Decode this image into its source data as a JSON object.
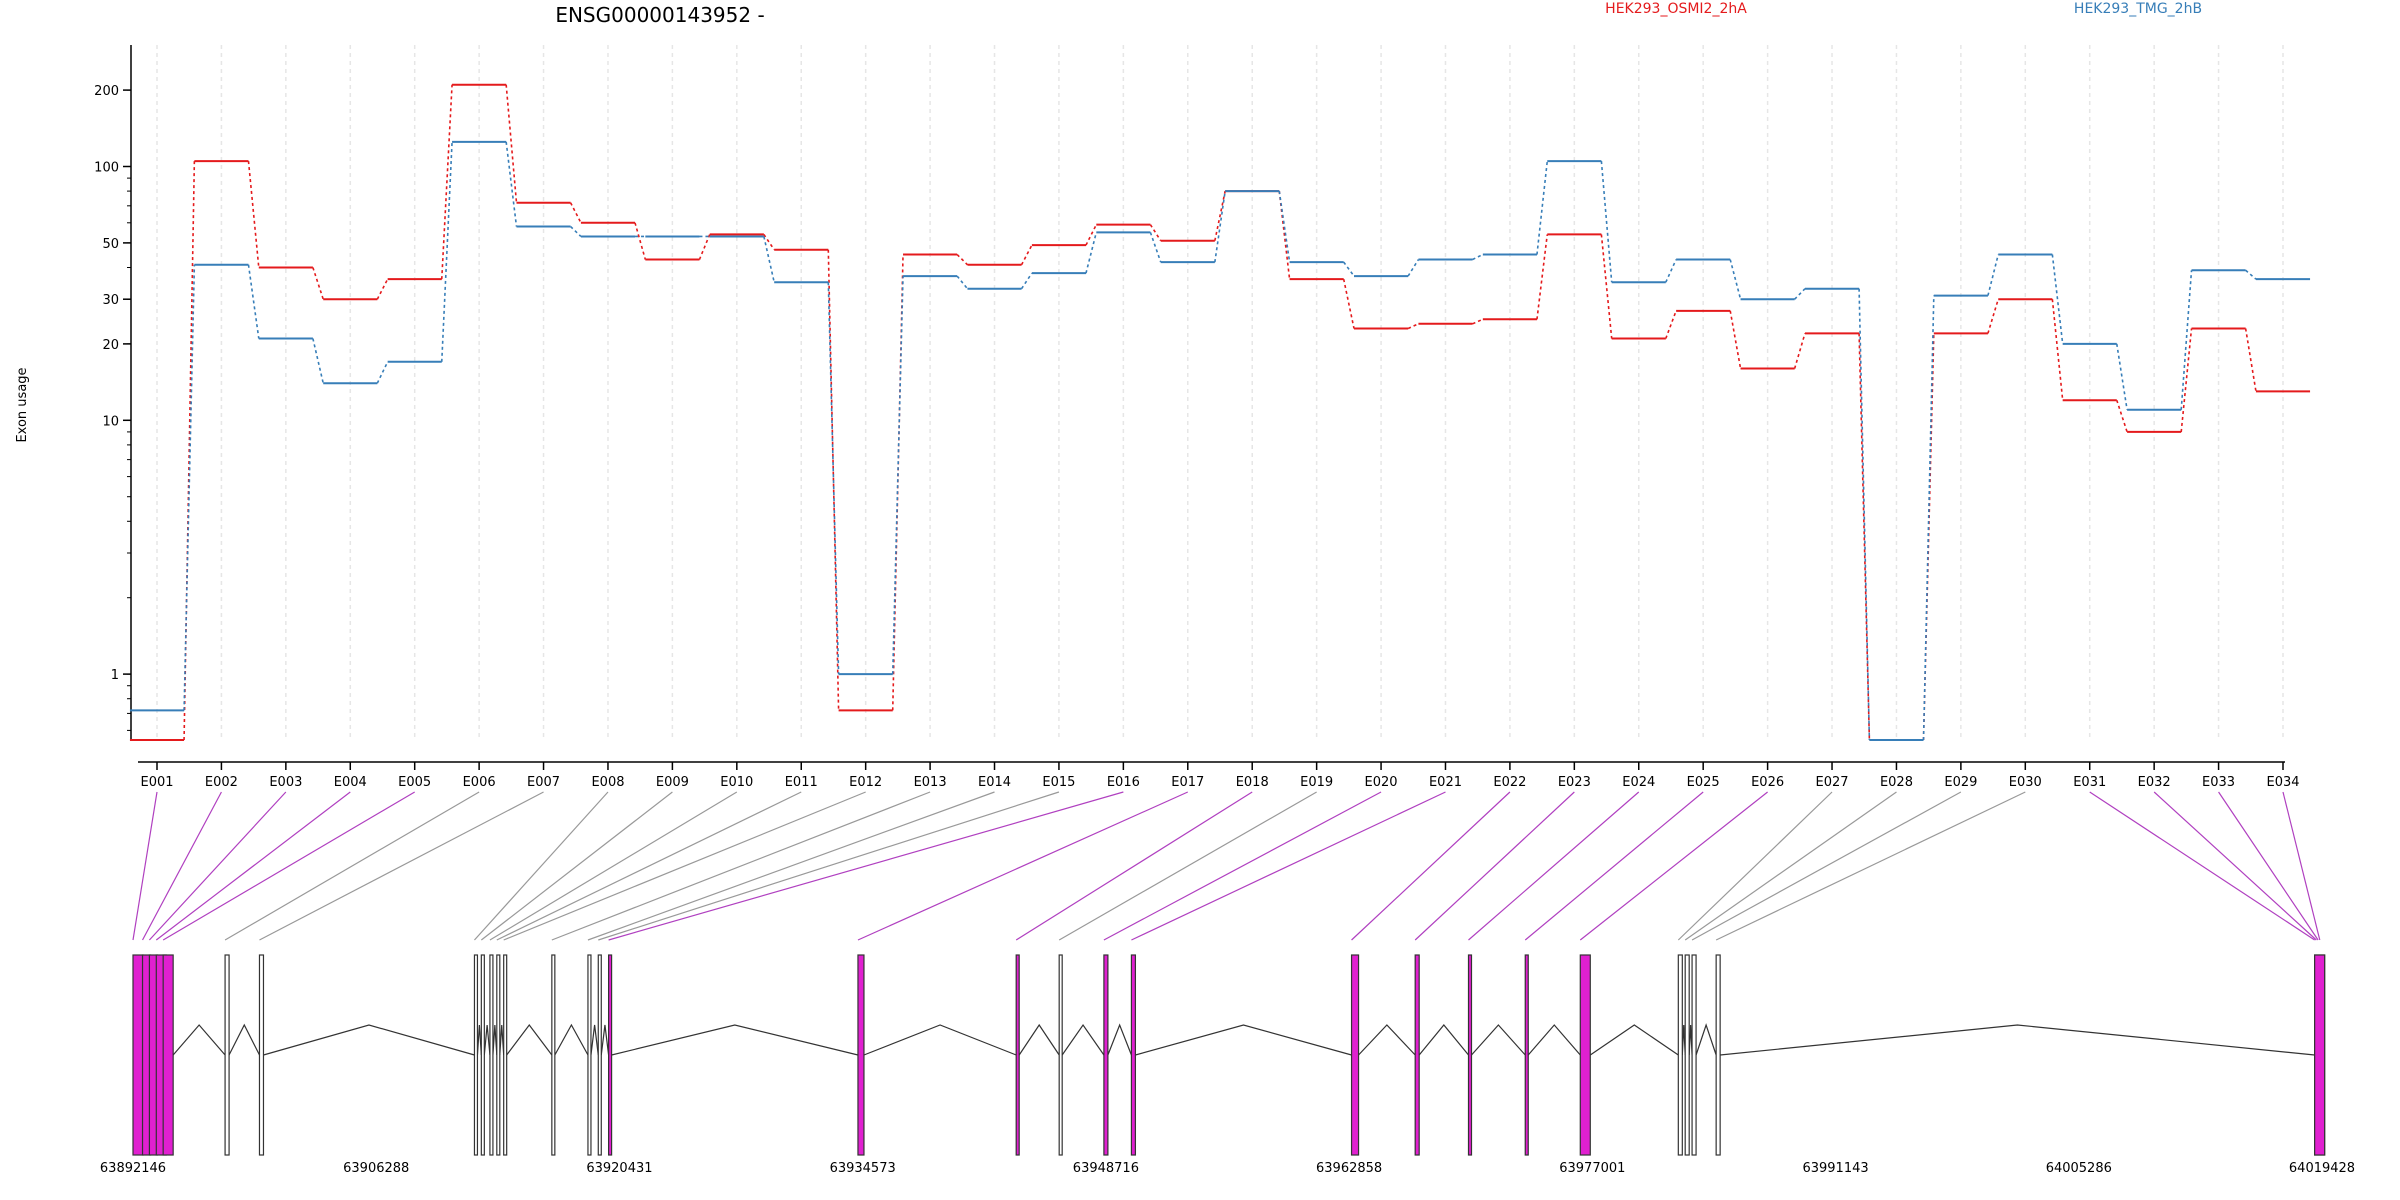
{
  "chart_data": {
    "type": "line",
    "title": "ENSG00000143952 -",
    "ylabel": "Exon usage",
    "xlabel": "",
    "y_scale": "log",
    "ylim": [
      0.55,
      240
    ],
    "y_ticks": [
      1,
      10,
      20,
      30,
      50,
      100,
      200
    ],
    "grid": "vertical lines at exon bins",
    "legend_placement": "top-right",
    "categories": [
      "E001",
      "E002",
      "E003",
      "E004",
      "E005",
      "E006",
      "E007",
      "E008",
      "E009",
      "E010",
      "E011",
      "E012",
      "E013",
      "E014",
      "E015",
      "E016",
      "E017",
      "E018",
      "E019",
      "E020",
      "E021",
      "E022",
      "E023",
      "E024",
      "E025",
      "E026",
      "E027",
      "E028",
      "E029",
      "E030",
      "E031",
      "E032",
      "E033",
      "E034"
    ],
    "series": [
      {
        "name": "HEK293_OSMI2_2hA",
        "color": "#e41a1c",
        "values": [
          0.55,
          105,
          40,
          30,
          36,
          210,
          72,
          60,
          43,
          54,
          47,
          0.72,
          45,
          41,
          49,
          59,
          51,
          80,
          36,
          23,
          24,
          25,
          54,
          21,
          27,
          16,
          22,
          0.55,
          22,
          30,
          12,
          9,
          23,
          13
        ]
      },
      {
        "name": "HEK293_TMG_2hB",
        "color": "#377eb8",
        "values": [
          0.72,
          41,
          21,
          14,
          17,
          125,
          58,
          53,
          53,
          53,
          35,
          1.0,
          37,
          33,
          38,
          55,
          42,
          80,
          42,
          37,
          43,
          45,
          105,
          35,
          43,
          30,
          33,
          0.55,
          31,
          45,
          20,
          11,
          39,
          36
        ]
      }
    ],
    "genomic_axis": {
      "tick_labels": [
        "63892146",
        "63906288",
        "63920431",
        "63934573",
        "63948716",
        "63962858",
        "63977001",
        "63991143",
        "64005286",
        "64019428"
      ]
    },
    "highlighted_exons": [
      "E001",
      "E002",
      "E003",
      "E004",
      "E005",
      "E016",
      "E017",
      "E018",
      "E020",
      "E021",
      "E022",
      "E023",
      "E024",
      "E025",
      "E026",
      "E031",
      "E032",
      "E033",
      "E034"
    ]
  }
}
